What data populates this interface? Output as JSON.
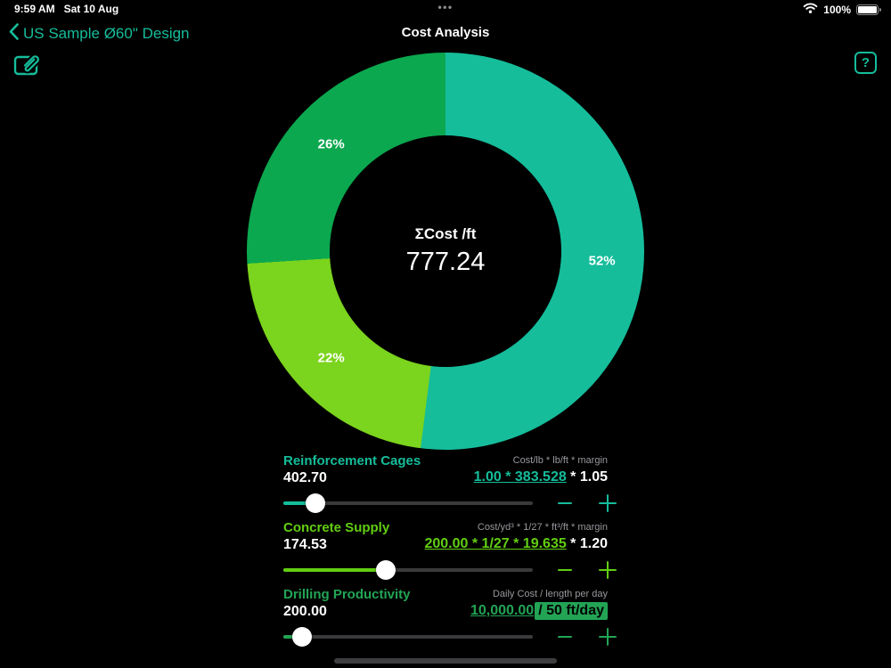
{
  "status_bar": {
    "time": "9:59 AM",
    "date": "Sat 10 Aug",
    "dots": "•••",
    "battery": "100%"
  },
  "nav": {
    "back_label": "US Sample Ø60\" Design",
    "title": "Cost Analysis"
  },
  "colors": {
    "teal": "#15BD9B",
    "green": "#0BA84F",
    "lime": "#7BD41D",
    "accent_teal": "#15BD9B",
    "accent_lime": "#62CE12",
    "accent_green": "#23A455",
    "caption_grey": "#98989E",
    "track_grey": "#3A3A3C",
    "background": "#000000"
  },
  "chart_data": {
    "type": "pie",
    "title": "Cost Analysis donut",
    "center_label": "ΣCost /ft",
    "center_value": "777.24",
    "legend_position": "none",
    "slices": [
      {
        "name": "Reinforcement Cages",
        "label": "52%",
        "value": 52,
        "cost_per_ft": 402.7,
        "color": "#15BD9B"
      },
      {
        "name": "Concrete Supply",
        "label": "22%",
        "value": 22,
        "cost_per_ft": 174.53,
        "color": "#7BD41D"
      },
      {
        "name": "Drilling Productivity",
        "label": "26%",
        "value": 26,
        "cost_per_ft": 200.0,
        "color": "#0BA84F"
      }
    ]
  },
  "rows": [
    {
      "name": "Reinforcement Cages",
      "value": "402.70",
      "caption": "Cost/lb * lb/ft * margin",
      "formula_link": "1.00 * 383.528",
      "formula_rest": " * 1.05",
      "accent": "#15BD9B",
      "slider_percent": 13
    },
    {
      "name": "Concrete Supply",
      "value": "174.53",
      "caption": "Cost/yd³ * 1/27 * ft³/ft * margin",
      "formula_link": "200.00 * 1/27 * 19.635",
      "formula_rest": " * 1.20",
      "accent": "#62CE12",
      "slider_percent": 41
    },
    {
      "name": "Drilling Productivity",
      "value": "200.00",
      "caption": "Daily Cost / length per day",
      "formula_link": "10,000.00",
      "formula_chip": "/ 50 ft/day",
      "accent": "#23A455",
      "slider_percent": 7.5
    }
  ]
}
